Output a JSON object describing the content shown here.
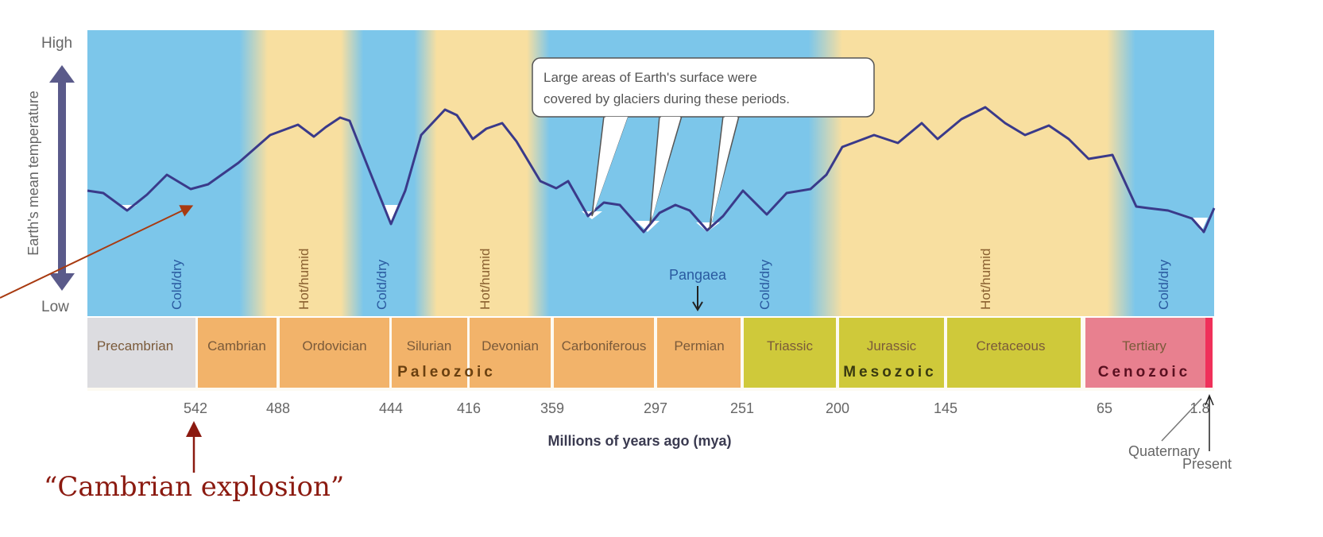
{
  "axis": {
    "high": "High",
    "low": "Low",
    "ylabel": "Earth's mean temperature",
    "xlabel": "Millions of years ago (mya)"
  },
  "callout": {
    "line1": "Large areas of Earth's surface were",
    "line2": "covered by glaciers during these periods."
  },
  "climate_labels": [
    "Cold/dry",
    "Hot/humid",
    "Cold/dry",
    "Hot/humid",
    "Cold/dry",
    "Hot/humid",
    "Cold/dry"
  ],
  "periods": [
    "Precambrian",
    "Cambrian",
    "Ordovician",
    "Silurian",
    "Devonian",
    "Carboniferous",
    "Permian",
    "Triassic",
    "Jurassic",
    "Cretaceous",
    "Tertiary"
  ],
  "eras": [
    "Paleozoic",
    "Mesozoic",
    "Cenozoic"
  ],
  "ticks": [
    "542",
    "488",
    "444",
    "416",
    "359",
    "297",
    "251",
    "200",
    "145",
    "65",
    "1.8"
  ],
  "pangaea": "Pangaea",
  "quaternary": "Quaternary",
  "present": "Present",
  "annotation": "“Cambrian explosion”",
  "colors": {
    "cold": "#7cc6ea",
    "hot": "#f8dfa0",
    "paleozoic": "#f2b36a",
    "mesozoic": "#cfc93a",
    "cenozoic": "#e8808f",
    "curve": "#3a3a8a",
    "annotation": "#8b1a10"
  },
  "chart_data": {
    "type": "line",
    "title": "",
    "xlabel": "Millions of years ago (mya)",
    "ylabel": "Earth's mean temperature",
    "x_ticks": [
      542,
      488,
      444,
      416,
      359,
      297,
      251,
      200,
      145,
      65,
      1.8
    ],
    "y_range": [
      "Low",
      "High"
    ],
    "series": [
      {
        "name": "Earth's mean temperature",
        "values": "relative qualitative curve; glacial minima near 444, ~330, ~300, ~270 mya and present"
      }
    ]
  }
}
